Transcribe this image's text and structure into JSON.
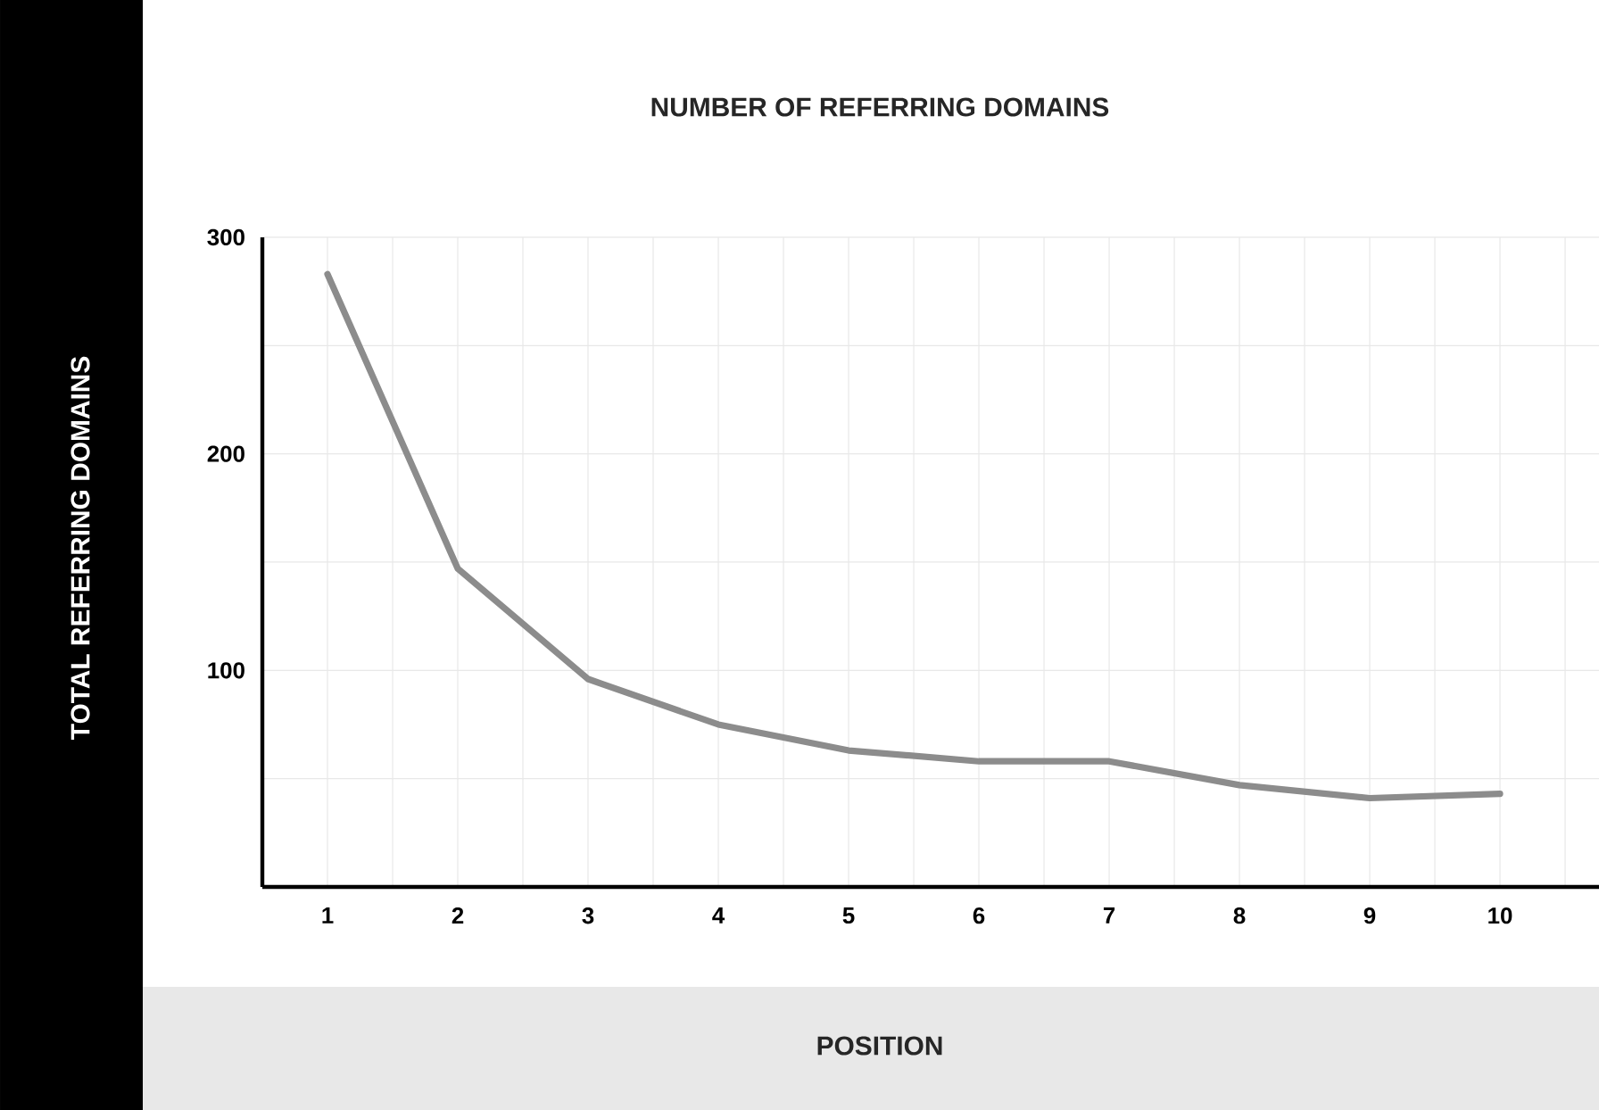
{
  "chart_data": {
    "type": "line",
    "title": "NUMBER OF REFERRING DOMAINS",
    "xlabel": "POSITION",
    "ylabel": "TOTAL REFERRING DOMAINS",
    "categories": [
      "1",
      "2",
      "3",
      "4",
      "5",
      "6",
      "7",
      "8",
      "9",
      "10"
    ],
    "series": [
      {
        "color": "#8c8c8c",
        "values": [
          283,
          147,
          96,
          75,
          63,
          58,
          58,
          47,
          41,
          43
        ]
      }
    ],
    "ylim": [
      0,
      300
    ],
    "yticks": [
      {
        "value": 50,
        "label": null
      },
      100,
      {
        "value": 150,
        "label": null
      },
      200,
      {
        "value": 250,
        "label": null
      },
      300
    ],
    "grid": true
  }
}
